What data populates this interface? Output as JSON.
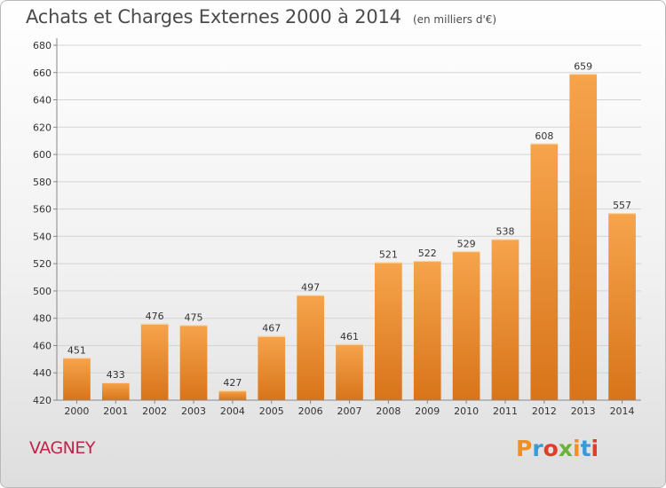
{
  "chart_data": {
    "type": "bar",
    "title": "Achats et Charges Externes 2000 à 2014",
    "subtitle": "(en milliers d'€)",
    "categories": [
      "2000",
      "2001",
      "2002",
      "2003",
      "2004",
      "2005",
      "2006",
      "2007",
      "2008",
      "2009",
      "2010",
      "2011",
      "2012",
      "2013",
      "2014"
    ],
    "values": [
      451,
      433,
      476,
      475,
      427,
      467,
      497,
      461,
      521,
      522,
      529,
      538,
      608,
      659,
      557
    ],
    "ylim": [
      420,
      680
    ],
    "yticks": [
      420,
      440,
      460,
      480,
      500,
      520,
      540,
      560,
      580,
      600,
      620,
      640,
      660,
      680
    ],
    "grid": true,
    "bar_color": "#f0a040",
    "bar_color_dark": "#d8741a"
  },
  "place_name": "VAGNEY",
  "logo": {
    "letters": [
      "P",
      "r",
      "o",
      "x",
      "i",
      "t",
      "i"
    ],
    "colors": [
      "#f09020",
      "#3a9ad8",
      "#e63a2a",
      "#6ab23a",
      "#f09020",
      "#3a9ad8",
      "#e63a2a"
    ]
  }
}
